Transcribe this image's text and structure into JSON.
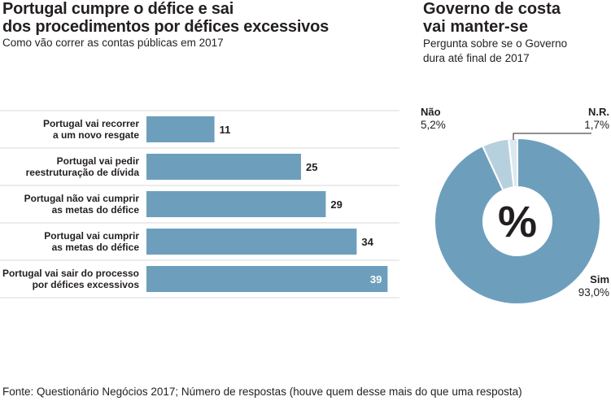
{
  "left": {
    "title_line1": "Portugal cumpre o défice e sai",
    "title_line2": "dos procedimentos por défices excessivos",
    "subtitle": "Como vão correr as contas públicas em 2017"
  },
  "right": {
    "title_line1": "Governo de costa",
    "title_line2": "vai manter-se",
    "subtitle_line1": "Pergunta sobre se o Governo",
    "subtitle_line2": "dura até final de 2017",
    "center_symbol": "%"
  },
  "source": "Fonte: Questionário Negócios 2017; Número de respostas (houve quem desse mais do que uma resposta)",
  "colors": {
    "bar": "#6d9fbd",
    "pie_main": "#6d9fbd",
    "pie_light": "#b7d0de",
    "pie_tiny": "#dbe8f0",
    "divider": "#d9d9d9"
  },
  "chart_data": [
    {
      "type": "bar",
      "orientation": "horizontal",
      "categories": [
        [
          "Portugal vai recorrer",
          "a um novo resgate"
        ],
        [
          "Portugal vai pedir",
          "reestruturação de dívida"
        ],
        [
          "Portugal não vai cumprir",
          "as metas do défice"
        ],
        [
          "Portugal vai cumprir",
          "as metas do défice"
        ],
        [
          "Portugal vai sair do processo",
          "por défices excessivos"
        ]
      ],
      "values": [
        11,
        25,
        29,
        34,
        39
      ],
      "xlim": [
        0,
        40
      ],
      "grid": false
    },
    {
      "type": "pie",
      "donut": true,
      "slices": [
        {
          "label": "Sim",
          "value": 93.0,
          "display": "93,0%"
        },
        {
          "label": "Não",
          "value": 5.2,
          "display": "5,2%"
        },
        {
          "label": "N.R.",
          "value": 1.7,
          "display": "1,7%"
        }
      ]
    }
  ]
}
